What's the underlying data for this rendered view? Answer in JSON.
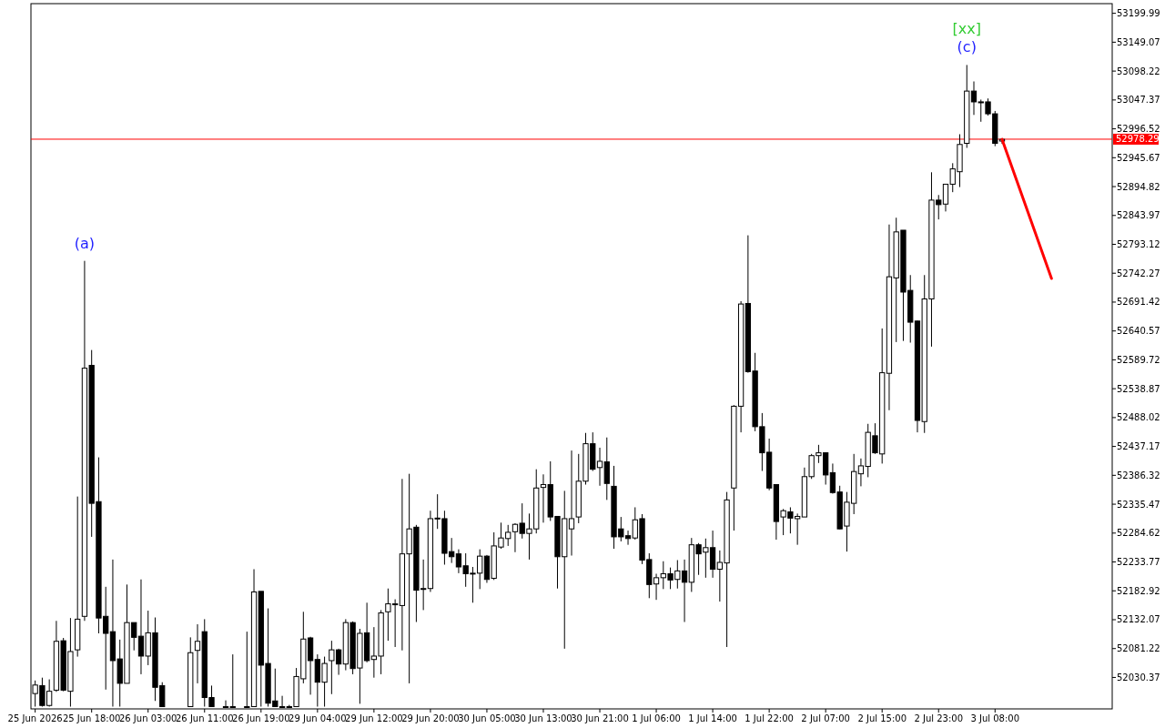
{
  "chart_data": {
    "type": "candlestick",
    "categories": [
      "25 Jun 2026",
      null,
      null,
      null,
      null,
      null,
      null,
      null,
      "25 Jun 18:00",
      null,
      null,
      null,
      null,
      null,
      null,
      null,
      "26 Jun 03:00",
      null,
      null,
      null,
      null,
      null,
      null,
      null,
      "26 Jun 11:00",
      null,
      null,
      null,
      null,
      null,
      null,
      null,
      "26 Jun 19:00",
      null,
      null,
      null,
      null,
      null,
      null,
      null,
      "29 Jun 04:00",
      null,
      null,
      null,
      null,
      null,
      null,
      null,
      "29 Jun 12:00",
      null,
      null,
      null,
      null,
      null,
      null,
      null,
      "29 Jun 20:00",
      null,
      null,
      null,
      null,
      null,
      null,
      null,
      "30 Jun 05:00",
      null,
      null,
      null,
      null,
      null,
      null,
      null,
      "30 Jun 13:00",
      null,
      null,
      null,
      null,
      null,
      null,
      null,
      "30 Jun 21:00",
      null,
      null,
      null,
      null,
      null,
      null,
      null,
      "1 Jul 06:00",
      null,
      null,
      null,
      null,
      null,
      null,
      null,
      "1 Jul 14:00",
      null,
      null,
      null,
      null,
      null,
      null,
      null,
      "1 Jul 22:00",
      null,
      null,
      null,
      null,
      null,
      null,
      null,
      "2 Jul 07:00",
      null,
      null,
      null,
      null,
      null,
      null,
      null,
      "2 Jul 15:00",
      null,
      null,
      null,
      null,
      null,
      null,
      null,
      "2 Jul 23:00",
      null,
      null,
      null,
      null,
      null,
      null,
      null,
      "3 Jul 08:00",
      null,
      null,
      null,
      null,
      null,
      null,
      null,
      null,
      null,
      null,
      null,
      null,
      null,
      null,
      null,
      null
    ],
    "ohlc": [
      [
        52002,
        52025,
        51979,
        52017
      ],
      [
        52016,
        52030,
        51979,
        51981
      ],
      [
        51981,
        52027,
        51979,
        52006
      ],
      [
        52008,
        52130,
        52005,
        52094
      ],
      [
        52095,
        52100,
        52006,
        52008
      ],
      [
        52006,
        52135,
        51979,
        52076
      ],
      [
        52079,
        52349,
        52067,
        52133
      ],
      [
        52138,
        52764,
        52130,
        52575
      ],
      [
        52580,
        52607,
        52278,
        52337
      ],
      [
        52340,
        52418,
        52108,
        52135
      ],
      [
        52138,
        52190,
        52009,
        52108
      ],
      [
        52111,
        52238,
        51979,
        52060
      ],
      [
        52063,
        52097,
        51979,
        52020
      ],
      [
        52020,
        52194,
        52020,
        52127
      ],
      [
        52127,
        52127,
        52078,
        52101
      ],
      [
        52103,
        52203,
        52036,
        52068
      ],
      [
        52068,
        52148,
        52052,
        52109
      ],
      [
        52109,
        52136,
        51989,
        52013
      ],
      [
        52016,
        52022,
        51979,
        51979
      ],
      null,
      null,
      null,
      [
        51979,
        52101,
        51979,
        52074
      ],
      [
        52078,
        52124,
        52020,
        52094
      ],
      [
        52111,
        52133,
        51979,
        51995
      ],
      [
        51995,
        52016,
        51979,
        51979
      ],
      null,
      [
        51979,
        51990,
        51979,
        51979
      ],
      [
        51979,
        52071,
        51979,
        51979
      ],
      null,
      [
        51979,
        52111,
        51979,
        51979
      ],
      [
        51979,
        52221,
        51979,
        52181
      ],
      [
        52182,
        52182,
        51979,
        52052
      ],
      [
        52055,
        52152,
        51979,
        51985
      ],
      [
        51989,
        52046,
        51979,
        51979
      ],
      [
        51979,
        51998,
        51979,
        51979
      ],
      [
        51979,
        51982,
        51979,
        51979
      ],
      [
        51979,
        52047,
        51979,
        52032
      ],
      [
        52028,
        52146,
        52020,
        52098
      ],
      [
        52100,
        52102,
        52000,
        52060
      ],
      [
        52062,
        52071,
        51979,
        52022
      ],
      [
        52022,
        52067,
        51979,
        52055
      ],
      [
        52060,
        52095,
        52001,
        52079
      ],
      [
        52079,
        52081,
        52035,
        52054
      ],
      [
        52054,
        52133,
        52043,
        52127
      ],
      [
        52127,
        52129,
        52036,
        52046
      ],
      [
        52047,
        52116,
        51984,
        52108
      ],
      [
        52109,
        52162,
        52057,
        52060
      ],
      [
        52062,
        52119,
        52030,
        52068
      ],
      [
        52068,
        52149,
        52036,
        52144
      ],
      [
        52146,
        52187,
        52095,
        52160
      ],
      [
        52159,
        52168,
        52084,
        52160
      ],
      [
        52157,
        52380,
        52078,
        52248
      ],
      [
        52248,
        52389,
        52020,
        52292
      ],
      [
        52295,
        52299,
        52128,
        52184
      ],
      [
        52187,
        52238,
        52149,
        52187
      ],
      [
        52187,
        52324,
        52181,
        52310
      ],
      [
        52310,
        52353,
        52292,
        52311
      ],
      [
        52310,
        52324,
        52229,
        52249
      ],
      [
        52252,
        52276,
        52232,
        52243
      ],
      [
        52248,
        52256,
        52214,
        52225
      ],
      [
        52227,
        52249,
        52190,
        52213
      ],
      [
        52214,
        52225,
        52162,
        52214
      ],
      [
        52214,
        52256,
        52186,
        52244
      ],
      [
        52244,
        52246,
        52197,
        52203
      ],
      [
        52205,
        52286,
        52202,
        52262
      ],
      [
        52260,
        52303,
        52257,
        52276
      ],
      [
        52275,
        52299,
        52262,
        52286
      ],
      [
        52287,
        52302,
        52251,
        52300
      ],
      [
        52302,
        52337,
        52275,
        52284
      ],
      [
        52284,
        52319,
        52238,
        52292
      ],
      [
        52292,
        52397,
        52284,
        52364
      ],
      [
        52365,
        52388,
        52303,
        52370
      ],
      [
        52370,
        52411,
        52306,
        52313
      ],
      [
        52314,
        52314,
        52187,
        52243
      ],
      [
        52243,
        52359,
        52081,
        52310
      ],
      [
        52292,
        52430,
        52245,
        52310
      ],
      [
        52313,
        52424,
        52302,
        52376
      ],
      [
        52376,
        52461,
        52370,
        52442
      ],
      [
        52442,
        52462,
        52394,
        52397
      ],
      [
        52400,
        52435,
        52368,
        52411
      ],
      [
        52410,
        52453,
        52343,
        52372
      ],
      [
        52367,
        52403,
        52257,
        52278
      ],
      [
        52292,
        52313,
        52270,
        52278
      ],
      [
        52280,
        52289,
        52264,
        52275
      ],
      [
        52276,
        52330,
        52273,
        52308
      ],
      [
        52310,
        52318,
        52230,
        52237
      ],
      [
        52238,
        52249,
        52170,
        52194
      ],
      [
        52195,
        52213,
        52167,
        52206
      ],
      [
        52206,
        52235,
        52186,
        52213
      ],
      [
        52213,
        52224,
        52186,
        52202
      ],
      [
        52203,
        52237,
        52187,
        52218
      ],
      [
        52218,
        52238,
        52128,
        52198
      ],
      [
        52198,
        52276,
        52181,
        52264
      ],
      [
        52264,
        52267,
        52211,
        52248
      ],
      [
        52251,
        52275,
        52206,
        52259
      ],
      [
        52259,
        52289,
        52206,
        52221
      ],
      [
        52221,
        52254,
        52164,
        52233
      ],
      [
        52232,
        52357,
        52084,
        52343
      ],
      [
        52364,
        52510,
        52289,
        52508
      ],
      [
        52508,
        52693,
        52462,
        52688
      ],
      [
        52689,
        52809,
        52567,
        52569
      ],
      [
        52570,
        52602,
        52464,
        52472
      ],
      [
        52472,
        52496,
        52394,
        52426
      ],
      [
        52427,
        52451,
        52360,
        52364
      ],
      [
        52370,
        52370,
        52273,
        52305
      ],
      [
        52313,
        52327,
        52281,
        52324
      ],
      [
        52322,
        52330,
        52284,
        52311
      ],
      [
        52310,
        52319,
        52264,
        52314
      ],
      [
        52313,
        52400,
        52313,
        52384
      ],
      [
        52384,
        52424,
        52380,
        52421
      ],
      [
        52421,
        52440,
        52408,
        52426
      ],
      [
        52426,
        52427,
        52370,
        52387
      ],
      [
        52391,
        52407,
        52354,
        52356
      ],
      [
        52357,
        52368,
        52291,
        52292
      ],
      [
        52297,
        52357,
        52252,
        52339
      ],
      [
        52337,
        52424,
        52318,
        52393
      ],
      [
        52389,
        52416,
        52367,
        52403
      ],
      [
        52402,
        52477,
        52383,
        52462
      ],
      [
        52456,
        52478,
        52424,
        52426
      ],
      [
        52424,
        52645,
        52407,
        52567
      ],
      [
        52566,
        52828,
        52501,
        52736
      ],
      [
        52734,
        52840,
        52621,
        52815
      ],
      [
        52818,
        52818,
        52623,
        52709
      ],
      [
        52712,
        52739,
        52620,
        52656
      ],
      [
        52658,
        52659,
        52462,
        52483
      ],
      [
        52481,
        52739,
        52461,
        52697
      ],
      [
        52697,
        52920,
        52613,
        52871
      ],
      [
        52871,
        52880,
        52837,
        52863
      ],
      [
        52864,
        52899,
        52851,
        52899
      ],
      [
        52899,
        52936,
        52885,
        52926
      ],
      [
        52921,
        52987,
        52894,
        52969
      ],
      [
        52971,
        53109,
        52963,
        53063
      ],
      [
        53063,
        53080,
        53021,
        53044
      ],
      [
        53044,
        53048,
        53009,
        53043
      ],
      [
        53044,
        53050,
        53020,
        53023
      ],
      [
        53023,
        53028,
        52966,
        52971
      ],
      [
        52975,
        52980,
        52970,
        52978
      ],
      null,
      null,
      null,
      null,
      null,
      null,
      null,
      null,
      null,
      null,
      null,
      null,
      null,
      null,
      null
    ],
    "series": [
      {
        "type": "line",
        "color": "#ff0000",
        "values": [
          null,
          null,
          null,
          null,
          null,
          null,
          null,
          null,
          null,
          null,
          null,
          null,
          null,
          null,
          null,
          null,
          null,
          null,
          null,
          null,
          null,
          null,
          null,
          null,
          null,
          null,
          null,
          null,
          null,
          null,
          null,
          null,
          null,
          null,
          null,
          null,
          null,
          null,
          null,
          null,
          null,
          null,
          null,
          null,
          null,
          null,
          null,
          null,
          null,
          null,
          null,
          null,
          null,
          null,
          null,
          null,
          null,
          null,
          null,
          null,
          null,
          null,
          null,
          null,
          null,
          null,
          null,
          null,
          null,
          null,
          null,
          null,
          null,
          null,
          null,
          null,
          null,
          null,
          null,
          null,
          null,
          null,
          null,
          null,
          null,
          null,
          null,
          null,
          null,
          null,
          null,
          null,
          null,
          null,
          null,
          null,
          null,
          null,
          null,
          null,
          null,
          null,
          null,
          null,
          null,
          null,
          null,
          null,
          null,
          null,
          null,
          null,
          null,
          null,
          null,
          null,
          null,
          null,
          null,
          null,
          null,
          null,
          null,
          null,
          null,
          null,
          null,
          null,
          null,
          null,
          null,
          null,
          null,
          null,
          null,
          null,
          null,
          52978,
          null,
          null,
          null,
          null,
          null,
          null,
          52733,
          null,
          null,
          null,
          null,
          null,
          null,
          null,
          null
        ]
      }
    ],
    "ylim": [
      51975,
      53217
    ],
    "yticks": [
      52030.37,
      52081.22,
      52132.07,
      52182.92,
      52233.77,
      52284.62,
      52335.47,
      52386.32,
      52437.17,
      52488.02,
      52538.87,
      52589.72,
      52640.57,
      52691.42,
      52742.27,
      52793.12,
      52843.97,
      52894.82,
      52945.67,
      52996.52,
      53047.37,
      53098.22,
      53149.07,
      53199.99
    ],
    "ref_lines": [
      {
        "axis": "y",
        "value": 52978.29,
        "label": "52978.29",
        "color": "#ff0000"
      }
    ],
    "annotations": [
      {
        "text": "(a)",
        "y": 52764
      },
      {
        "text": "(c)",
        "y": 53109
      },
      {
        "text": "[xx]",
        "y": 53109
      }
    ]
  }
}
